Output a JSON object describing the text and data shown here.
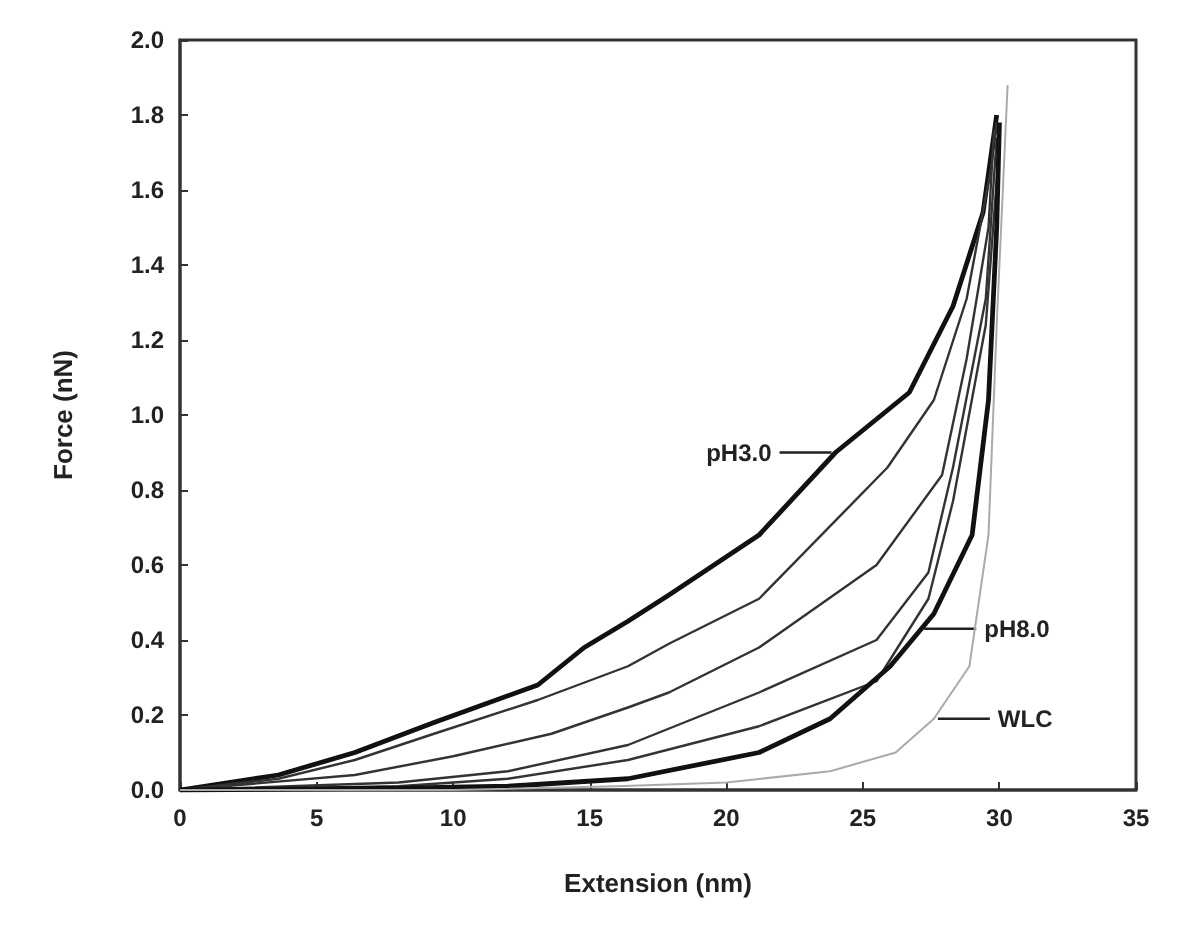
{
  "chart_data": {
    "type": "line",
    "xlabel": "Extension (nm)",
    "ylabel": "Force (nN)",
    "xlim": [
      0,
      35
    ],
    "xticks": [
      0,
      5,
      10,
      15,
      20,
      25,
      30,
      35
    ],
    "ylim": [
      0,
      2.0
    ],
    "yticks": [
      {
        "value": 0,
        "label": "0.0"
      },
      {
        "value": 0.2,
        "label": "0.2"
      },
      {
        "value": 0.4,
        "label": "0.4"
      },
      {
        "value": 0.6,
        "label": "0.6"
      },
      {
        "value": 0.8,
        "label": "0.8"
      },
      {
        "value": 1.0,
        "label": "1.0"
      },
      {
        "value": 1.2,
        "label": "1.2"
      },
      {
        "value": 1.4,
        "label": "1.4"
      },
      {
        "value": 1.6,
        "label": "1.6"
      },
      {
        "value": 1.8,
        "label": "1.8"
      },
      {
        "value": 2.0,
        "label": "2.0"
      }
    ],
    "grid": false,
    "marker": "none",
    "line_style": "solid",
    "series": [
      {
        "color": "#111111",
        "x": [
          0,
          3.6,
          6.4,
          9.3,
          13.1,
          14.8,
          16.4,
          17.9,
          21.2,
          24,
          26.7,
          28.3,
          29.4,
          29.9
        ],
        "values": [
          0,
          0.04,
          0.1,
          0.18,
          0.28,
          0.38,
          0.45,
          0.52,
          0.68,
          0.9,
          1.06,
          1.29,
          1.54,
          1.8
        ]
      },
      {
        "color": "#333333",
        "x": [
          0,
          3.6,
          6.4,
          9.3,
          13.1,
          16.4,
          17.9,
          21.2,
          25.9,
          27.6,
          28.8,
          29.7,
          29.9
        ],
        "values": [
          0,
          0.03,
          0.08,
          0.15,
          0.24,
          0.33,
          0.39,
          0.51,
          0.86,
          1.04,
          1.31,
          1.66,
          1.78
        ]
      },
      {
        "color": "#333333",
        "x": [
          0,
          6.4,
          10,
          13.6,
          16.4,
          17.9,
          21.2,
          25.5,
          27.9,
          28.8,
          29.6,
          29.8
        ],
        "values": [
          0,
          0.04,
          0.09,
          0.15,
          0.22,
          0.26,
          0.38,
          0.6,
          0.84,
          1.15,
          1.5,
          1.76
        ]
      },
      {
        "color": "#333333",
        "x": [
          0,
          8,
          12,
          16.4,
          21.2,
          25.5,
          27.4,
          28.3,
          29.5,
          29.9
        ],
        "values": [
          0,
          0.02,
          0.05,
          0.12,
          0.26,
          0.4,
          0.58,
          0.86,
          1.31,
          1.74
        ]
      },
      {
        "color": "#333333",
        "x": [
          0,
          8,
          12,
          16.4,
          21.2,
          25.5,
          27.4,
          28.3,
          29.5,
          30
        ],
        "values": [
          0,
          0.01,
          0.03,
          0.08,
          0.17,
          0.29,
          0.51,
          0.77,
          1.24,
          1.72
        ]
      },
      {
        "color": "#111111",
        "x": [
          0,
          8,
          12,
          16.4,
          21.2,
          23.8,
          26,
          27.6,
          29,
          29.6,
          29.9,
          30
        ],
        "values": [
          0,
          0.005,
          0.01,
          0.03,
          0.1,
          0.19,
          0.33,
          0.47,
          0.68,
          1.04,
          1.5,
          1.78
        ]
      },
      {
        "color": "#aaaaaa",
        "x": [
          0,
          10,
          16,
          20,
          23.8,
          26.2,
          27.6,
          28.9,
          29.6,
          29.9,
          30.3
        ],
        "values": [
          0,
          0,
          0.01,
          0.02,
          0.05,
          0.1,
          0.19,
          0.33,
          0.68,
          1.24,
          1.88
        ]
      }
    ],
    "annotations": [
      {
        "text": "pH3.0",
        "x": 24,
        "y": 0.9
      },
      {
        "text": "pH8.0",
        "x": 27.1,
        "y": 0.43
      },
      {
        "text": "WLC",
        "x": 27.6,
        "y": 0.19
      }
    ]
  }
}
